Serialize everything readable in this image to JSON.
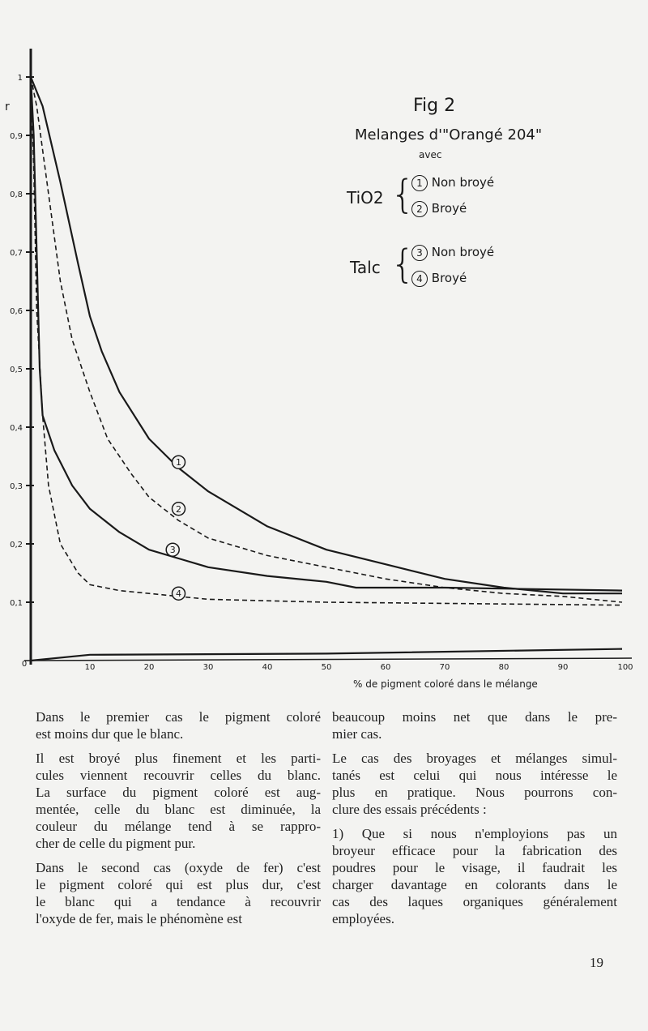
{
  "figure": {
    "title": "Fig 2",
    "subtitle": "Melanges d'\"Orangé 204\"",
    "subtitle2": "avec",
    "groups": [
      {
        "name": "TiO2",
        "items": [
          {
            "num": "1",
            "label": "Non broyé"
          },
          {
            "num": "2",
            "label": "Broyé"
          }
        ]
      },
      {
        "name": "Talc",
        "items": [
          {
            "num": "3",
            "label": "Non broyé"
          },
          {
            "num": "4",
            "label": "Broyé"
          }
        ]
      }
    ]
  },
  "chart_data": {
    "type": "line",
    "title": "Fig 2",
    "xlabel": "% de pigment coloré dans le mélange",
    "ylabel": "r",
    "xlim": [
      0,
      100
    ],
    "ylim": [
      0,
      1
    ],
    "grid": false,
    "x_ticks": [
      "0",
      "10",
      "20",
      "30",
      "40",
      "50",
      "60",
      "70",
      "80",
      "90",
      "100"
    ],
    "y_ticks": [
      "0,1",
      "0,2",
      "0,3",
      "0,4",
      "0,5",
      "0,6",
      "0,7",
      "0,8",
      "0,9",
      "1"
    ],
    "series": [
      {
        "name": "1",
        "style": "solid",
        "label_at": [
          25,
          0.34
        ],
        "points": [
          [
            0,
            1
          ],
          [
            2,
            0.95
          ],
          [
            5,
            0.82
          ],
          [
            8,
            0.68
          ],
          [
            10,
            0.59
          ],
          [
            12,
            0.53
          ],
          [
            15,
            0.46
          ],
          [
            20,
            0.38
          ],
          [
            25,
            0.33
          ],
          [
            30,
            0.29
          ],
          [
            40,
            0.23
          ],
          [
            50,
            0.19
          ],
          [
            60,
            0.165
          ],
          [
            70,
            0.14
          ],
          [
            80,
            0.125
          ],
          [
            90,
            0.115
          ],
          [
            100,
            0.115
          ]
        ]
      },
      {
        "name": "2",
        "style": "dashed",
        "label_at": [
          25,
          0.26
        ],
        "points": [
          [
            0,
            1
          ],
          [
            1,
            0.95
          ],
          [
            3,
            0.8
          ],
          [
            5,
            0.65
          ],
          [
            7,
            0.55
          ],
          [
            10,
            0.46
          ],
          [
            13,
            0.38
          ],
          [
            17,
            0.32
          ],
          [
            20,
            0.28
          ],
          [
            25,
            0.24
          ],
          [
            30,
            0.21
          ],
          [
            40,
            0.18
          ],
          [
            50,
            0.16
          ],
          [
            60,
            0.14
          ],
          [
            70,
            0.125
          ],
          [
            80,
            0.115
          ],
          [
            90,
            0.11
          ],
          [
            100,
            0.1
          ]
        ]
      },
      {
        "name": "3",
        "style": "solid",
        "label_at": [
          24,
          0.19
        ],
        "points": [
          [
            0,
            1
          ],
          [
            0.5,
            0.9
          ],
          [
            1,
            0.7
          ],
          [
            1.5,
            0.5
          ],
          [
            2,
            0.42
          ],
          [
            4,
            0.36
          ],
          [
            7,
            0.3
          ],
          [
            10,
            0.26
          ],
          [
            15,
            0.22
          ],
          [
            20,
            0.19
          ],
          [
            25,
            0.175
          ],
          [
            30,
            0.16
          ],
          [
            40,
            0.145
          ],
          [
            50,
            0.135
          ],
          [
            55,
            0.125
          ],
          [
            70,
            0.125
          ],
          [
            100,
            0.12
          ]
        ]
      },
      {
        "name": "4",
        "style": "dashed",
        "label_at": [
          25,
          0.115
        ],
        "points": [
          [
            0,
            1
          ],
          [
            0.5,
            0.85
          ],
          [
            1,
            0.6
          ],
          [
            2,
            0.42
          ],
          [
            3,
            0.3
          ],
          [
            5,
            0.2
          ],
          [
            8,
            0.15
          ],
          [
            10,
            0.13
          ],
          [
            15,
            0.12
          ],
          [
            20,
            0.115
          ],
          [
            30,
            0.105
          ],
          [
            50,
            0.1
          ],
          [
            100,
            0.095
          ]
        ]
      },
      {
        "style": "solid",
        "points": [
          [
            0,
            0
          ],
          [
            10,
            0.01
          ],
          [
            50,
            0.012
          ],
          [
            100,
            0.02
          ]
        ]
      }
    ]
  },
  "text": {
    "left": [
      [
        "Dans le premier cas le pigment coloré",
        "est moins dur que le blanc."
      ],
      [
        "Il est broyé plus finement et les parti-",
        "cules viennent recouvrir celles du blanc.",
        "La surface du pigment coloré est aug-",
        "mentée, celle du blanc est diminuée, la",
        "couleur du mélange tend à se rappro-",
        "cher de celle du pigment pur."
      ],
      [
        "Dans le second cas (oxyde de fer) c'est",
        "le pigment coloré qui est plus dur, c'est",
        "le blanc qui a tendance à recouvrir",
        "l'oxyde de fer, mais le phénomène est"
      ]
    ],
    "right": [
      [
        "beaucoup moins net que dans le pre-",
        "mier cas."
      ],
      [
        "Le cas des broyages et mélanges simul-",
        "tanés est celui qui nous intéresse le",
        "plus en pratique. Nous pourrons con-",
        "clure des essais précédents :"
      ],
      [
        "1) Que si nous n'employions pas un",
        "broyeur efficace pour la fabrication des",
        "poudres pour le visage, il faudrait les",
        "charger davantage en colorants dans le",
        "cas des laques organiques généralement",
        "employées."
      ]
    ]
  },
  "page_number": "19"
}
